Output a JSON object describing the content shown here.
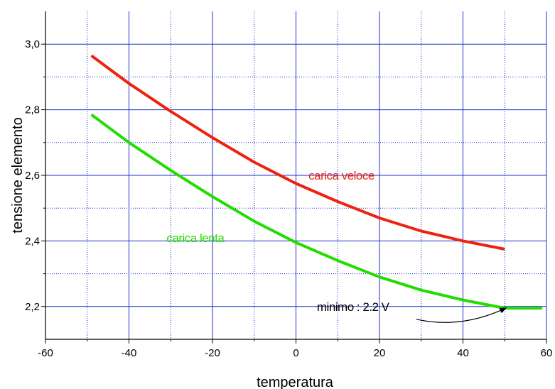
{
  "chart_data": {
    "type": "line",
    "title": "",
    "xlabel": "temperatura",
    "ylabel": "tensione elemento",
    "xlim": [
      -60,
      60
    ],
    "ylim": [
      2.1,
      3.1
    ],
    "xticks": [
      -60,
      -40,
      -20,
      0,
      20,
      40,
      60
    ],
    "xtick_labels": [
      "-60",
      "-40",
      "-20",
      "0",
      "20",
      "40",
      "60"
    ],
    "xminor": [
      -50,
      -30,
      -10,
      10,
      30,
      50
    ],
    "yticks": [
      2.2,
      2.4,
      2.6,
      2.8,
      3.0
    ],
    "ytick_labels": [
      "2,2",
      "2,4",
      "2,6",
      "2,8",
      "3,0"
    ],
    "yminor": [
      2.3,
      2.5,
      2.7,
      2.9
    ],
    "grid": true,
    "series": [
      {
        "name": "carica veloce",
        "color": "#ee2211",
        "x": [
          -49,
          -40,
          -30,
          -20,
          -10,
          0,
          10,
          20,
          30,
          40,
          50
        ],
        "y": [
          2.965,
          2.88,
          2.795,
          2.715,
          2.64,
          2.575,
          2.52,
          2.47,
          2.43,
          2.4,
          2.375
        ]
      },
      {
        "name": "carica lenta",
        "color": "#22dd00",
        "x": [
          -49,
          -40,
          -30,
          -20,
          -10,
          0,
          10,
          20,
          30,
          40,
          50,
          59
        ],
        "y": [
          2.785,
          2.7,
          2.615,
          2.535,
          2.46,
          2.395,
          2.34,
          2.29,
          2.25,
          2.22,
          2.195,
          2.195
        ]
      }
    ],
    "annotations": [
      {
        "text": "carica veloce",
        "x": 3,
        "y": 2.6,
        "color": "#ee2211"
      },
      {
        "text": "carica lenta",
        "x": -31,
        "y": 2.41,
        "color": "#22dd00"
      },
      {
        "text": "minimo : 2.2 V",
        "x": 5,
        "y": 2.2,
        "color": "#000000",
        "arrow_to": [
          50,
          2.2
        ]
      }
    ]
  }
}
